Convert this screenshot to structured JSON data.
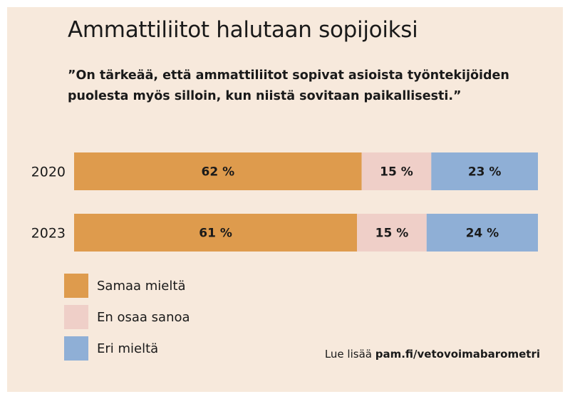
{
  "header": {
    "title": "Ammattiliitot halutaan sopijoiksi",
    "subtitle": "”On tärkeää, että ammattiliitot sopivat asioista työntekijöiden puolesta myös silloin, kun niistä sovitaan paikallisesti.”"
  },
  "footer": {
    "prefix": "Lue lisää ",
    "url": "pam.fi/vetovoimabarometri"
  },
  "chart_data": {
    "type": "bar",
    "orientation": "horizontal",
    "stacked": true,
    "categories": [
      "2020",
      "2023"
    ],
    "series": [
      {
        "name": "Samaa mieltä",
        "values": [
          62,
          61
        ],
        "color": "#de9b4d"
      },
      {
        "name": "En osaa sanoa",
        "values": [
          15,
          15
        ],
        "color": "#efcfc8"
      },
      {
        "name": "Eri mieltä",
        "values": [
          23,
          24
        ],
        "color": "#8fafd6"
      }
    ],
    "value_suffix": " %",
    "xlim": [
      0,
      100
    ],
    "legend_position": "bottom-left",
    "grid": false
  }
}
